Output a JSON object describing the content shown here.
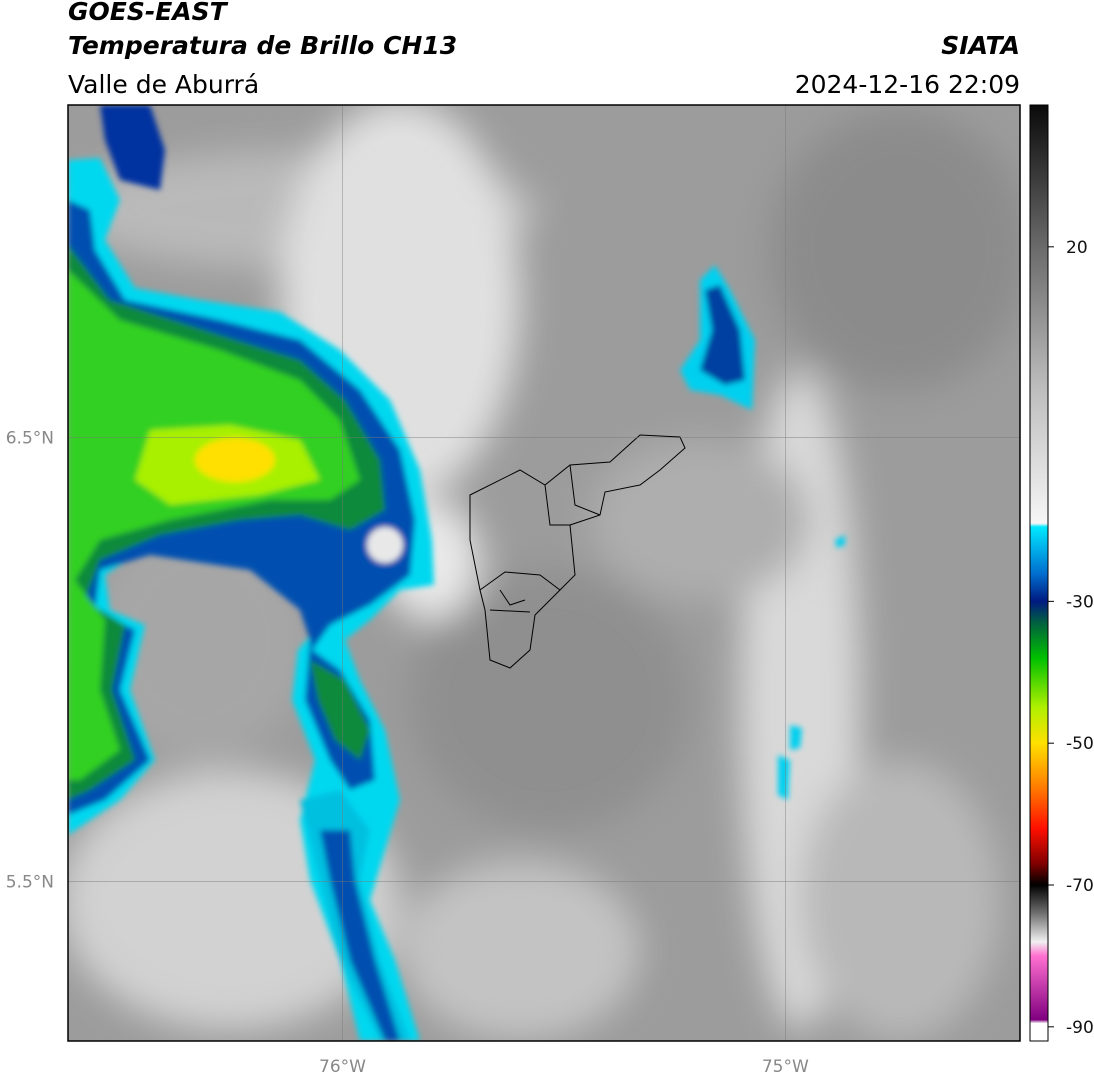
{
  "header": {
    "title": "GOES-EAST",
    "subtitle": "Temperatura de Brillo CH13",
    "region": "Valle de Aburrá",
    "source": "SIATA",
    "datetime": "2024-12-16 22:09"
  },
  "map": {
    "xlim": [
      -76.62,
      -74.47
    ],
    "ylim": [
      5.14,
      7.25
    ],
    "xticks": [
      {
        "value": -76,
        "label": "76°W"
      },
      {
        "value": -75,
        "label": "75°W"
      }
    ],
    "yticks": [
      {
        "value": 6.5,
        "label": "6.5°N"
      },
      {
        "value": 5.5,
        "label": "5.5°N"
      }
    ],
    "grid": true
  },
  "colorbar": {
    "lim": [
      -92,
      40
    ],
    "ticks": [
      20,
      -30,
      -50,
      -70,
      -90
    ],
    "stops": [
      {
        "value": 40,
        "color": "#0a0a0a"
      },
      {
        "value": 20,
        "color": "#6a6a6a"
      },
      {
        "value": 0,
        "color": "#bdbdbd"
      },
      {
        "value": -19,
        "color": "#f6f6f6"
      },
      {
        "value": -19.5,
        "color": "#00e8ff"
      },
      {
        "value": -26,
        "color": "#0070d0"
      },
      {
        "value": -30,
        "color": "#001a80"
      },
      {
        "value": -33,
        "color": "#006040"
      },
      {
        "value": -38,
        "color": "#00c000"
      },
      {
        "value": -45,
        "color": "#b0f000"
      },
      {
        "value": -50,
        "color": "#ffe000"
      },
      {
        "value": -56,
        "color": "#ff8000"
      },
      {
        "value": -62,
        "color": "#ff1000"
      },
      {
        "value": -67,
        "color": "#800000"
      },
      {
        "value": -70,
        "color": "#000000"
      },
      {
        "value": -74,
        "color": "#707070"
      },
      {
        "value": -78,
        "color": "#f0f0f0"
      },
      {
        "value": -80,
        "color": "#ff70d0"
      },
      {
        "value": -89,
        "color": "#800080"
      },
      {
        "value": -89.5,
        "color": "#ffffff"
      },
      {
        "value": -92,
        "color": "#ffffff"
      }
    ]
  }
}
